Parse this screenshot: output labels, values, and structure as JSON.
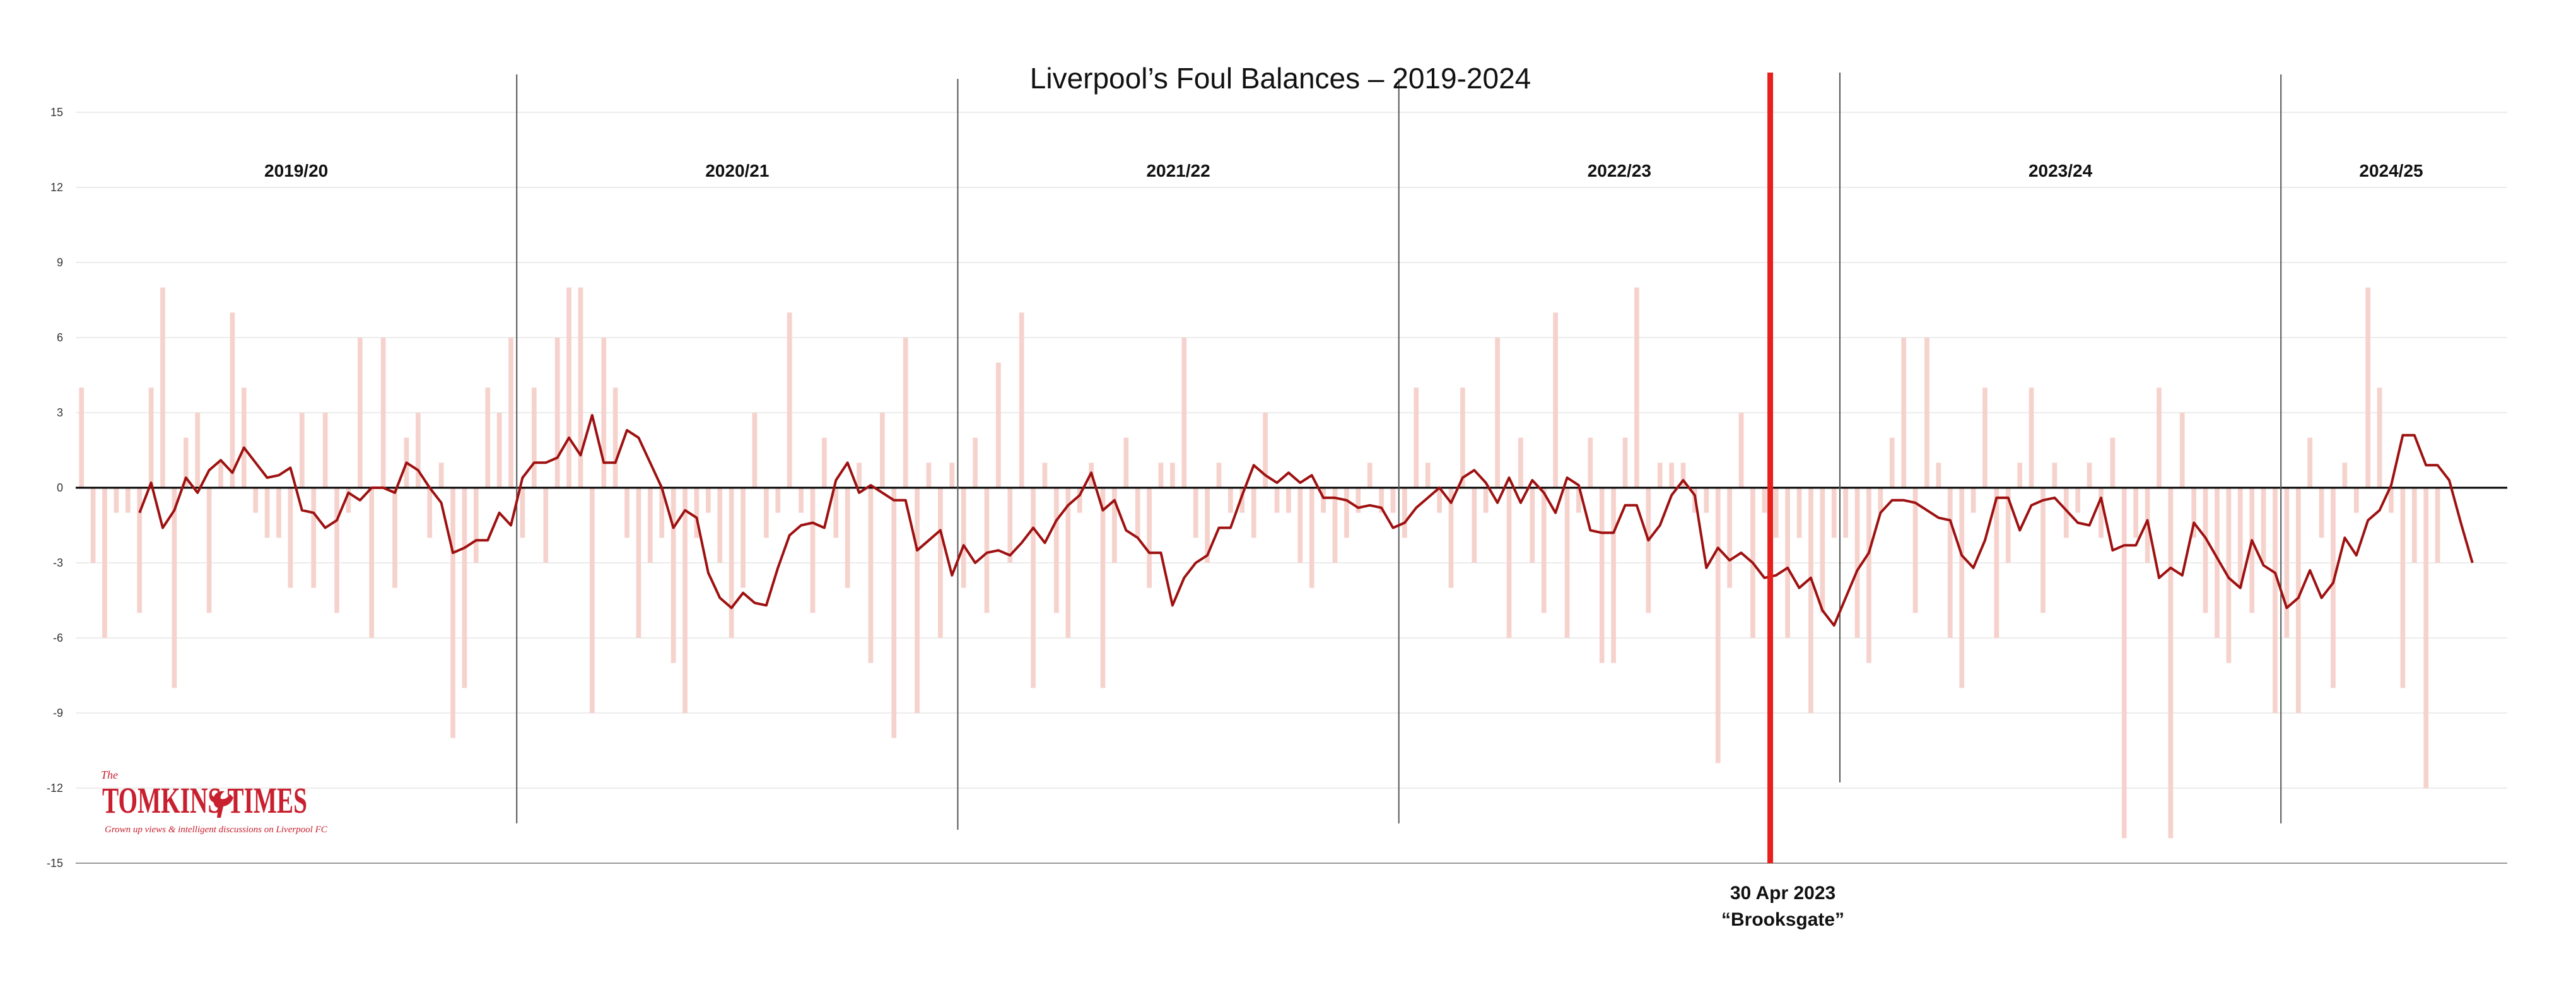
{
  "chart_data": {
    "type": "bar",
    "title": "Liverpool’s Foul Balances – 2019-2024",
    "xlabel": "",
    "ylabel": "",
    "ylim": [
      -15,
      15
    ],
    "yticks": [
      15,
      12,
      9,
      6,
      3,
      0,
      -3,
      -6,
      -9,
      -12,
      -15
    ],
    "grid": true,
    "seasons": [
      {
        "label": "2019/20",
        "start": 1,
        "end": 38
      },
      {
        "label": "2020/21",
        "start": 39,
        "end": 76
      },
      {
        "label": "2021/22",
        "start": 77,
        "end": 114
      },
      {
        "label": "2022/23",
        "start": 115,
        "end": 152
      },
      {
        "label": "2023/24",
        "start": 153,
        "end": 190
      },
      {
        "label": "2024/25",
        "start": 191,
        "end": 209
      }
    ],
    "event": {
      "match": 146,
      "date_label": "30 Apr 2023",
      "name_label": "“Brooksgate”",
      "color": "#e8201c"
    },
    "bar_color": "#f6d2cd",
    "line_color": "#9e1111",
    "series": [
      {
        "type": "bar",
        "x_start": 1,
        "values": [
          4,
          -3,
          -6,
          -1,
          -1,
          -5,
          4,
          8,
          -8,
          2,
          3,
          -5,
          1,
          7,
          4,
          -1,
          -2,
          -2,
          -4,
          3,
          -4,
          3,
          -5,
          -1,
          6,
          -6,
          6,
          -4,
          2,
          3,
          -2,
          1,
          -10,
          -8,
          -3,
          4,
          3,
          6,
          -2,
          4,
          -3,
          6,
          8,
          8,
          -9,
          6,
          4,
          -2,
          -6,
          -3,
          -2,
          -7,
          -9,
          -2,
          -1,
          -3,
          -6,
          -4,
          3,
          -2,
          -1,
          7,
          -1,
          -5,
          2,
          -2,
          -4,
          1,
          -7,
          3,
          -10,
          6,
          -9,
          1,
          -6,
          1,
          -4,
          2,
          -5,
          5,
          -3,
          7,
          -8,
          1,
          -5,
          -6,
          -1,
          1,
          -8,
          -3,
          2,
          -2,
          -4,
          1,
          1,
          6,
          -2,
          -3,
          1,
          -1,
          -1,
          -2,
          3,
          -1,
          -1,
          -3,
          -4,
          -1,
          -3,
          -2,
          -1,
          1,
          -1,
          -1,
          -2,
          4,
          1,
          -1,
          -4,
          4,
          -3,
          -1,
          6,
          -6,
          2,
          -3,
          -5,
          7,
          -6,
          -1,
          2,
          -7,
          -7,
          2,
          8,
          -5,
          1,
          1,
          1,
          -1,
          -1,
          -11,
          -4,
          3,
          -6,
          -1,
          -2,
          -6,
          -2,
          -9,
          -5,
          -2,
          -2,
          -6,
          -7,
          -1,
          2,
          6,
          -5,
          6,
          1,
          -6,
          -8,
          -1,
          4,
          -6,
          -3,
          1,
          4,
          -5,
          1,
          -2,
          -1,
          1,
          -2,
          2,
          -14,
          -2,
          -3,
          4,
          -14,
          3,
          -2,
          -5,
          -6,
          -7,
          -4,
          -5,
          -3,
          -9,
          -6,
          -9,
          2,
          -2,
          -8,
          1,
          -1,
          8,
          4,
          -1,
          -8,
          -3,
          -12,
          -3
        ]
      },
      {
        "type": "line",
        "x_start": 6,
        "values": [
          -1,
          0.2,
          -1.6,
          -0.9,
          0.4,
          -0.2,
          0.7,
          1.1,
          0.6,
          1.6,
          1.0,
          0.4,
          0.5,
          0.8,
          -0.9,
          -1.0,
          -1.6,
          -1.3,
          -0.2,
          -0.5,
          0,
          0,
          -0.2,
          1.0,
          0.7,
          0.0,
          -0.6,
          -2.6,
          -2.4,
          -2.1,
          -2.1,
          -1.0,
          -1.5,
          0.4,
          1.0,
          1.0,
          1.2,
          2.0,
          1.3,
          2.9,
          1.0,
          1.0,
          2.3,
          2.0,
          1.0,
          0.0,
          -1.6,
          -0.9,
          -1.2,
          -3.4,
          -4.4,
          -4.8,
          -4.2,
          -4.6,
          -4.7,
          -3.2,
          -1.9,
          -1.5,
          -1.4,
          -1.6,
          0.3,
          1.0,
          -0.2,
          0.1,
          -0.2,
          -0.5,
          -0.5,
          -2.5,
          -2.1,
          -1.7,
          -3.5,
          -2.3,
          -3.0,
          -2.6,
          -2.5,
          -2.7,
          -2.2,
          -1.6,
          -2.2,
          -1.3,
          -0.7,
          -0.3,
          0.6,
          -0.9,
          -0.5,
          -1.7,
          -2.0,
          -2.6,
          -2.6,
          -4.7,
          -3.6,
          -3.0,
          -2.7,
          -1.6,
          -1.6,
          -0.3,
          0.9,
          0.5,
          0.2,
          0.6,
          0.2,
          0.5,
          -0.4,
          -0.4,
          -0.5,
          -0.8,
          -0.7,
          -0.8,
          -1.6,
          -1.4,
          -0.8,
          -0.4,
          0.0,
          -0.6,
          0.4,
          0.7,
          0.2,
          -0.6,
          0.4,
          -0.6,
          0.3,
          -0.2,
          -1.0,
          0.4,
          0.1,
          -1.7,
          -1.8,
          -1.8,
          -0.7,
          -0.7,
          -2.1,
          -1.5,
          -0.3,
          0.3,
          -0.3,
          -3.2,
          -2.4,
          -2.9,
          -2.6,
          -3.0,
          -3.6,
          -3.5,
          -3.2,
          -4.0,
          -3.6,
          -4.9,
          -5.5,
          -4.4,
          -3.3,
          -2.6,
          -1.0,
          -0.5,
          -0.5,
          -0.6,
          -0.9,
          -1.2,
          -1.3,
          -2.7,
          -3.2,
          -2.1,
          -0.4,
          -0.4,
          -1.7,
          -0.7,
          -0.5,
          -0.4,
          -0.9,
          -1.4,
          -1.5,
          -0.4,
          -2.5,
          -2.3,
          -2.3,
          -1.3,
          -3.6,
          -3.2,
          -3.5,
          -1.4,
          -2.0,
          -2.8,
          -3.6,
          -4.0,
          -2.1,
          -3.1,
          -3.4,
          -4.8,
          -4.4,
          -3.3,
          -4.4,
          -3.8,
          -2.0,
          -2.7,
          -1.3,
          -0.9,
          0.1,
          2.1,
          2.1,
          0.9,
          0.9,
          0.3,
          -1.4,
          -3.0
        ]
      }
    ]
  },
  "branding": {
    "small": "The",
    "name": "TOMKINS TIMES",
    "tagline": "Grown up views & intelligent discussions on Liverpool FC",
    "color": "#c8202f"
  }
}
